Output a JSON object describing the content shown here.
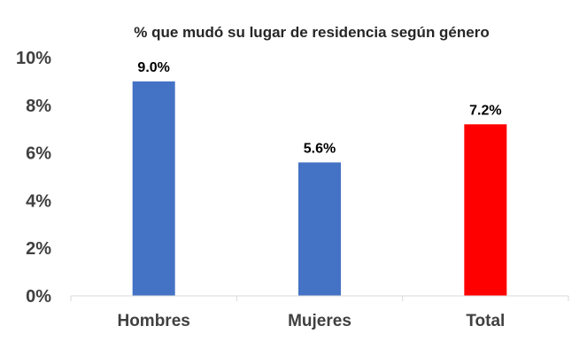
{
  "chart_data": {
    "type": "bar",
    "title": "% que mudó su lugar de residencia según género",
    "categories": [
      "Hombres",
      "Mujeres",
      "Total"
    ],
    "values": [
      9.0,
      5.6,
      7.2
    ],
    "data_labels": [
      "9.0%",
      "5.6%",
      "7.2%"
    ],
    "bar_colors": [
      "#4472C4",
      "#4472C4",
      "#FF0000"
    ],
    "ylim": [
      0,
      10
    ],
    "yticks": [
      0,
      2,
      4,
      6,
      8,
      10
    ],
    "ytick_labels": [
      "0%",
      "2%",
      "4%",
      "6%",
      "8%",
      "10%"
    ],
    "xlabel": "",
    "ylabel": "",
    "grid": false,
    "legend": "none"
  }
}
